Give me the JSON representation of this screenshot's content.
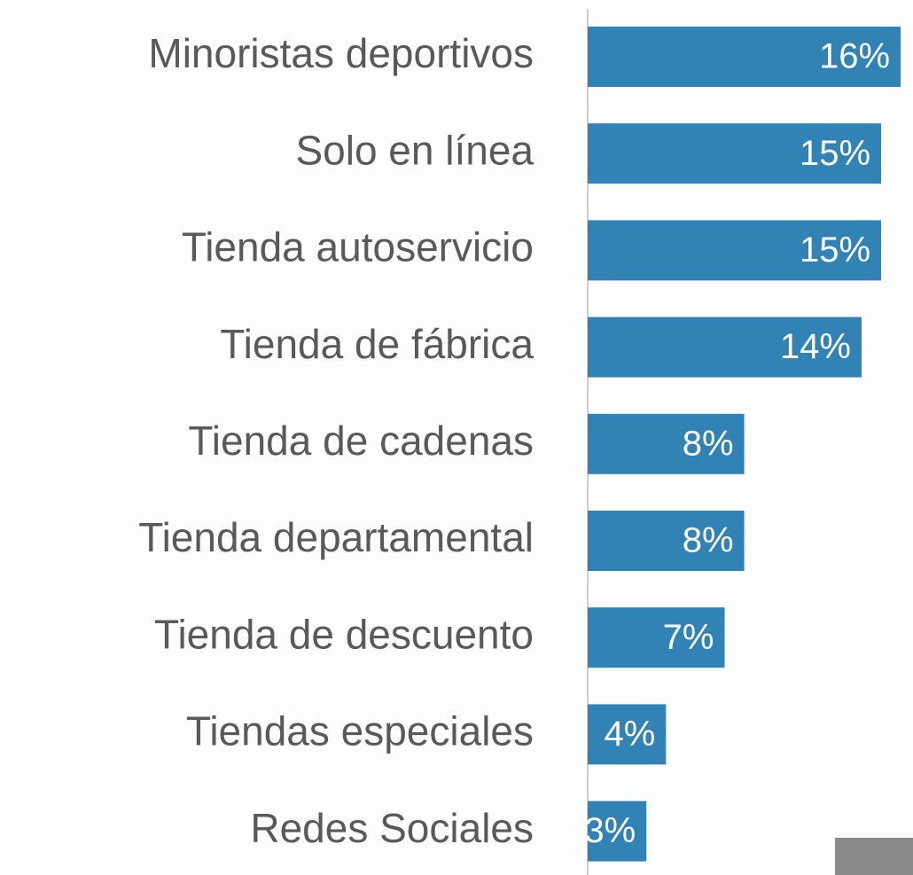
{
  "chart_data": {
    "type": "bar",
    "orientation": "horizontal",
    "categories": [
      "Minoristas deportivos",
      "Solo en línea",
      "Tienda autoservicio",
      "Tienda de fábrica",
      "Tienda de cadenas",
      "Tienda departamental",
      "Tienda de descuento",
      "Tiendas especiales",
      "Redes Sociales"
    ],
    "values": [
      16,
      15,
      15,
      14,
      8,
      8,
      7,
      4,
      3
    ],
    "value_labels": [
      "16%",
      "15%",
      "15%",
      "14%",
      "8%",
      "8%",
      "7%",
      "4%",
      "3%"
    ],
    "color": "#3182b5"
  }
}
